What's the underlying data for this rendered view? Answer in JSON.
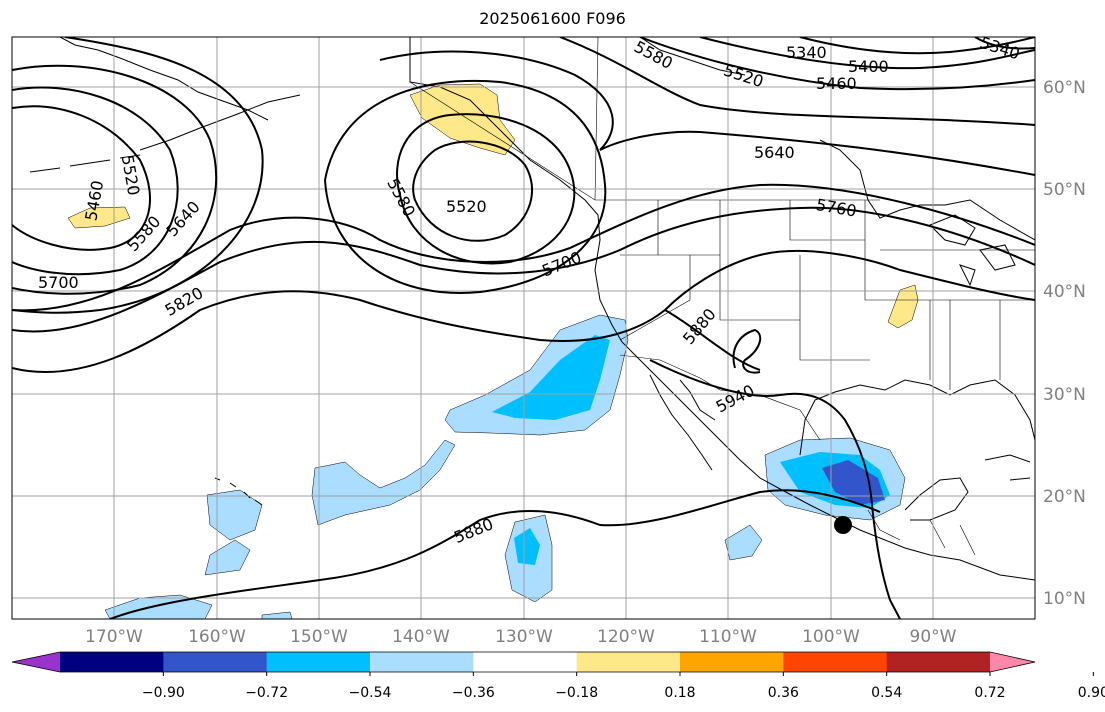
{
  "title": "2025061600 F096",
  "map": {
    "lat_labels": [
      "60°N",
      "50°N",
      "40°N",
      "30°N",
      "20°N",
      "10°N"
    ],
    "lon_labels": [
      "170°W",
      "160°W",
      "150°W",
      "140°W",
      "130°W",
      "120°W",
      "110°W",
      "100°W",
      "90°W"
    ],
    "contour_labels": [
      "5340",
      "5340",
      "5400",
      "5460",
      "5520",
      "5580",
      "5640",
      "5760",
      "5700",
      "5880",
      "5940",
      "5520",
      "5580",
      "5460",
      "5520",
      "5580",
      "5640",
      "5700",
      "5820",
      "5880"
    ],
    "marker": "storm-center-dot"
  },
  "colorbar": {
    "colors": [
      "#9933cc",
      "#000080",
      "#3355cc",
      "#00bfff",
      "#aaddff",
      "#ffffff",
      "#ffe88a",
      "#ffa500",
      "#ff4500",
      "#b22222",
      "#ff88aa"
    ],
    "tick_labels": [
      "−0.90",
      "−0.72",
      "−0.54",
      "−0.36",
      "−0.18",
      "0.18",
      "0.36",
      "0.54",
      "0.72",
      "0.90"
    ]
  }
}
